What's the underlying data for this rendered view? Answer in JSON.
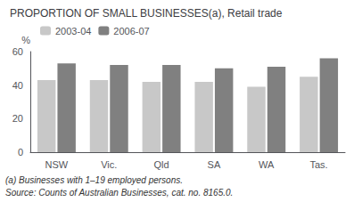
{
  "chart_data": {
    "type": "bar",
    "title": "PROPORTION OF SMALL BUSINESSES(a), Retail trade",
    "categories": [
      "NSW",
      "Vic.",
      "Qld",
      "SA",
      "WA",
      "Tas."
    ],
    "series": [
      {
        "name": "2003-04",
        "color": "#c8c8c8",
        "values": [
          43,
          43,
          42,
          42,
          39,
          45
        ]
      },
      {
        "name": "2006-07",
        "color": "#808080",
        "values": [
          53,
          52,
          52,
          50,
          51,
          56
        ]
      }
    ],
    "ylabel": "%",
    "ylim": [
      0,
      60
    ],
    "yticks": [
      0,
      20,
      40,
      60
    ],
    "grid": false,
    "legend": "upper left",
    "annotations": [
      "(a) Businesses with 1–19 employed persons.",
      "Source: Counts of Australian Businesses, cat. no. 8165.0."
    ]
  }
}
